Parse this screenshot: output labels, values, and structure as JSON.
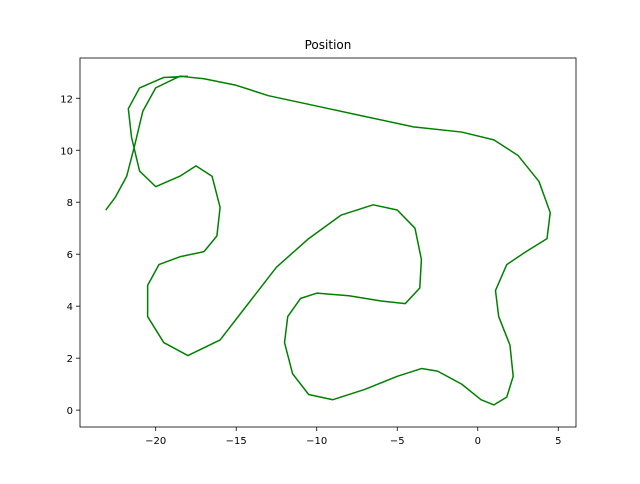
{
  "chart_data": {
    "type": "line",
    "title": "Position",
    "color": "#008000",
    "x": [
      -23.1,
      -22.5,
      -21.8,
      -21.3,
      -20.8,
      -20,
      -18.5,
      -17,
      -15,
      -13,
      -10,
      -7,
      -4,
      -1,
      1,
      2.5,
      3.8,
      4.5,
      4.3,
      3,
      1.8,
      1.1,
      1.3,
      2,
      2.2,
      1.8,
      1,
      0.2,
      -1,
      -2.5,
      -3.5,
      -5,
      -7,
      -9,
      -10.5,
      -11.5,
      -12,
      -11.8,
      -11,
      -10,
      -8,
      -6,
      -4.5,
      -3.6,
      -3.5,
      -3.9,
      -5,
      -6.5,
      -8.5,
      -10.5,
      -12.5,
      -14.5,
      -16,
      -18,
      -19.5,
      -20.5,
      -20.5,
      -19.8,
      -18.5,
      -17,
      -16.2,
      -16,
      -16.5,
      -17.5,
      -18.5,
      -20,
      -21,
      -21.5,
      -21.7,
      -21,
      -19.5,
      -18
    ],
    "values": [
      7.7,
      8.2,
      9.0,
      10.2,
      11.5,
      12.4,
      12.85,
      12.75,
      12.5,
      12.1,
      11.7,
      11.3,
      10.9,
      10.7,
      10.4,
      9.8,
      8.8,
      7.6,
      6.6,
      6.1,
      5.6,
      4.6,
      3.6,
      2.5,
      1.3,
      0.5,
      0.2,
      0.4,
      1.0,
      1.5,
      1.6,
      1.3,
      0.8,
      0.4,
      0.6,
      1.4,
      2.6,
      3.6,
      4.3,
      4.5,
      4.4,
      4.2,
      4.1,
      4.7,
      5.8,
      7.0,
      7.7,
      7.9,
      7.5,
      6.6,
      5.5,
      3.9,
      2.7,
      2.1,
      2.6,
      3.6,
      4.8,
      5.6,
      5.9,
      6.1,
      6.7,
      7.8,
      9.0,
      9.4,
      9.0,
      8.6,
      9.2,
      10.5,
      11.6,
      12.4,
      12.8,
      12.85
    ],
    "xlim": [
      -24.7,
      6.1
    ],
    "ylim": [
      -0.65,
      13.55
    ],
    "xticks": [
      {
        "value": -20,
        "label": "−20"
      },
      {
        "value": -15,
        "label": "−15"
      },
      {
        "value": -10,
        "label": "−10"
      },
      {
        "value": -5,
        "label": "−5"
      },
      0,
      5
    ],
    "yticks": [
      0,
      2,
      4,
      6,
      8,
      10,
      12
    ]
  }
}
